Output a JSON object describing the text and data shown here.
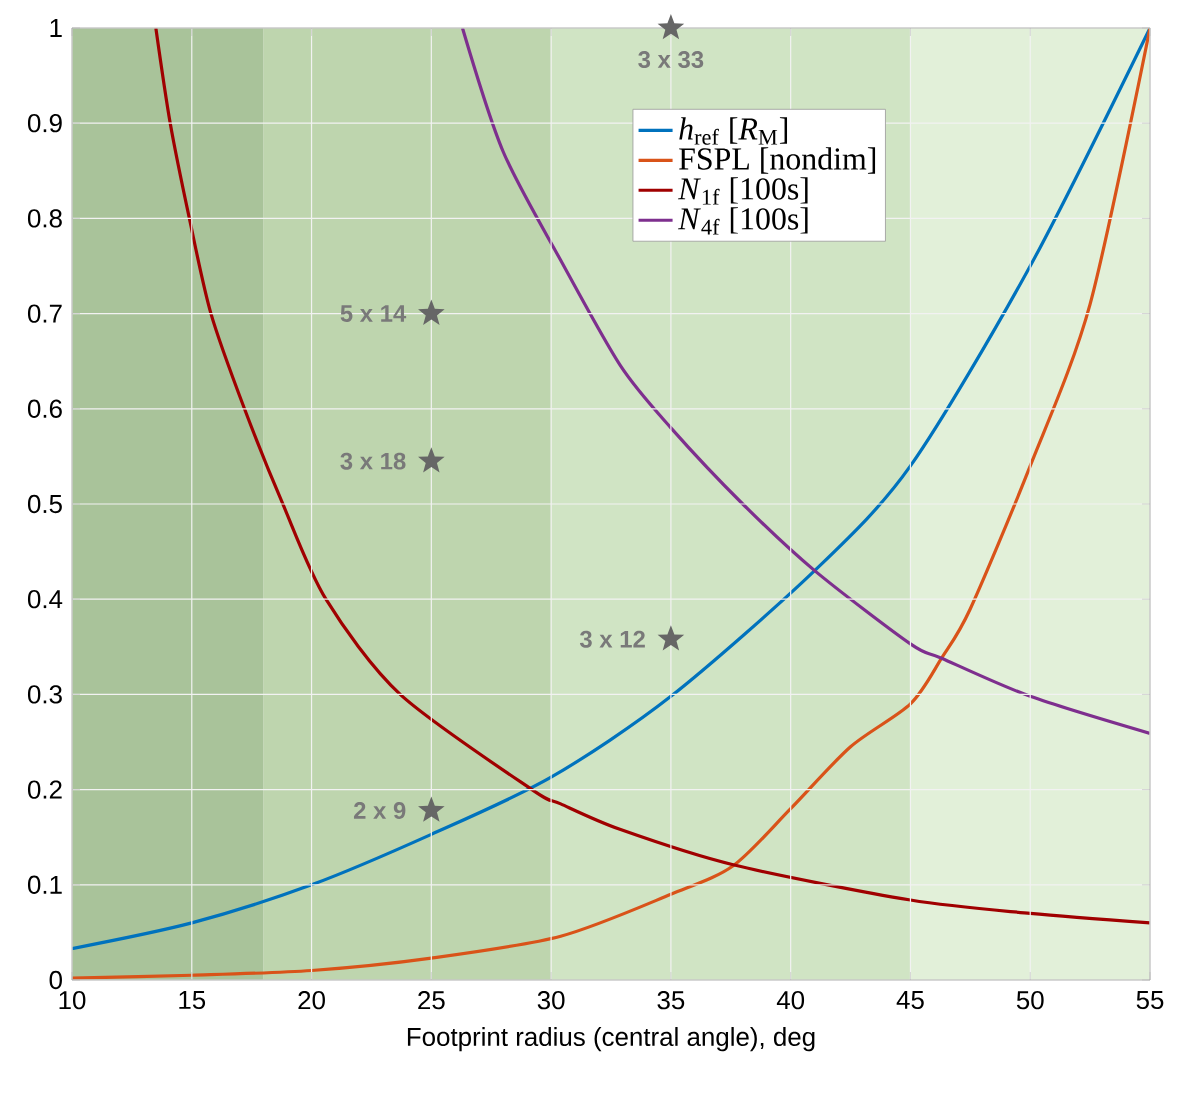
{
  "chart_data": {
    "type": "line",
    "xlabel": "Footprint radius (central angle), deg",
    "xlim": [
      10,
      55
    ],
    "ylim": [
      0,
      1
    ],
    "xticks": [
      10,
      15,
      20,
      25,
      30,
      35,
      40,
      45,
      50,
      55
    ],
    "yticks": [
      0,
      0.1,
      0.2,
      0.3,
      0.4,
      0.5,
      0.6,
      0.7,
      0.8,
      0.9,
      1
    ],
    "grid": true,
    "legend": "top right",
    "marker": "none",
    "bands": [
      {
        "axis": "x",
        "from": 10,
        "to": 18,
        "color": "#a9c39a"
      },
      {
        "axis": "x",
        "from": 18,
        "to": 30,
        "color": "#bed5ae"
      },
      {
        "axis": "x",
        "from": 30,
        "to": 45,
        "color": "#d0e4c4"
      },
      {
        "axis": "x",
        "from": 45,
        "to": 55,
        "color": "#e2f0d9"
      }
    ],
    "series": [
      {
        "name": "*h*$_{ref}$ [*R*$_{M}$]",
        "color": "#0072bd",
        "x": [
          10,
          15,
          20,
          25,
          30,
          35,
          41,
          45,
          50,
          55
        ],
        "values": [
          0.033,
          0.06,
          0.1,
          0.153,
          0.213,
          0.298,
          0.43,
          0.54,
          0.75,
          1.0
        ]
      },
      {
        "name": "FSPL [nondim]",
        "color": "#d95319",
        "x": [
          10,
          15,
          20,
          25,
          30.4,
          35,
          37.6,
          40,
          42.5,
          45,
          46.3,
          47.5,
          50,
          52.5,
          55
        ],
        "values": [
          0.002,
          0.005,
          0.01,
          0.023,
          0.046,
          0.09,
          0.12,
          0.18,
          0.245,
          0.29,
          0.338,
          0.39,
          0.54,
          0.71,
          1.0
        ]
      },
      {
        "name": "*N*$_{1f}$ [100s]",
        "color": "#a00000",
        "x": [
          13.5,
          14.1,
          14.9,
          15.8,
          17.2,
          18.8,
          20.6,
          23.7,
          29.2,
          30.4,
          32.9,
          37.6,
          45,
          50,
          55
        ],
        "values": [
          1.0,
          0.9,
          0.8,
          0.7,
          0.6,
          0.5,
          0.4,
          0.3,
          0.2,
          0.185,
          0.158,
          0.121,
          0.084,
          0.07,
          0.06
        ]
      },
      {
        "name": "*N*$_{4f}$ [100s]",
        "color": "#7e2f8e",
        "x": [
          26.3,
          28,
          30.4,
          32.9,
          35,
          38,
          41,
          45,
          46.3,
          50,
          55
        ],
        "values": [
          1.0,
          0.87,
          0.756,
          0.645,
          0.58,
          0.5,
          0.43,
          0.353,
          0.338,
          0.298,
          0.259
        ]
      },
      {
        "type": "scatter",
        "marker": "star",
        "color": "#666666",
        "x": [
          25,
          25,
          25,
          35,
          35
        ],
        "values": [
          0.7,
          0.545,
          0.178,
          0.358,
          1.0
        ]
      }
    ],
    "annotations": [
      "5 x 14",
      "3 x 18",
      "2 x 9",
      "3 x 12",
      "3 x 33"
    ]
  }
}
